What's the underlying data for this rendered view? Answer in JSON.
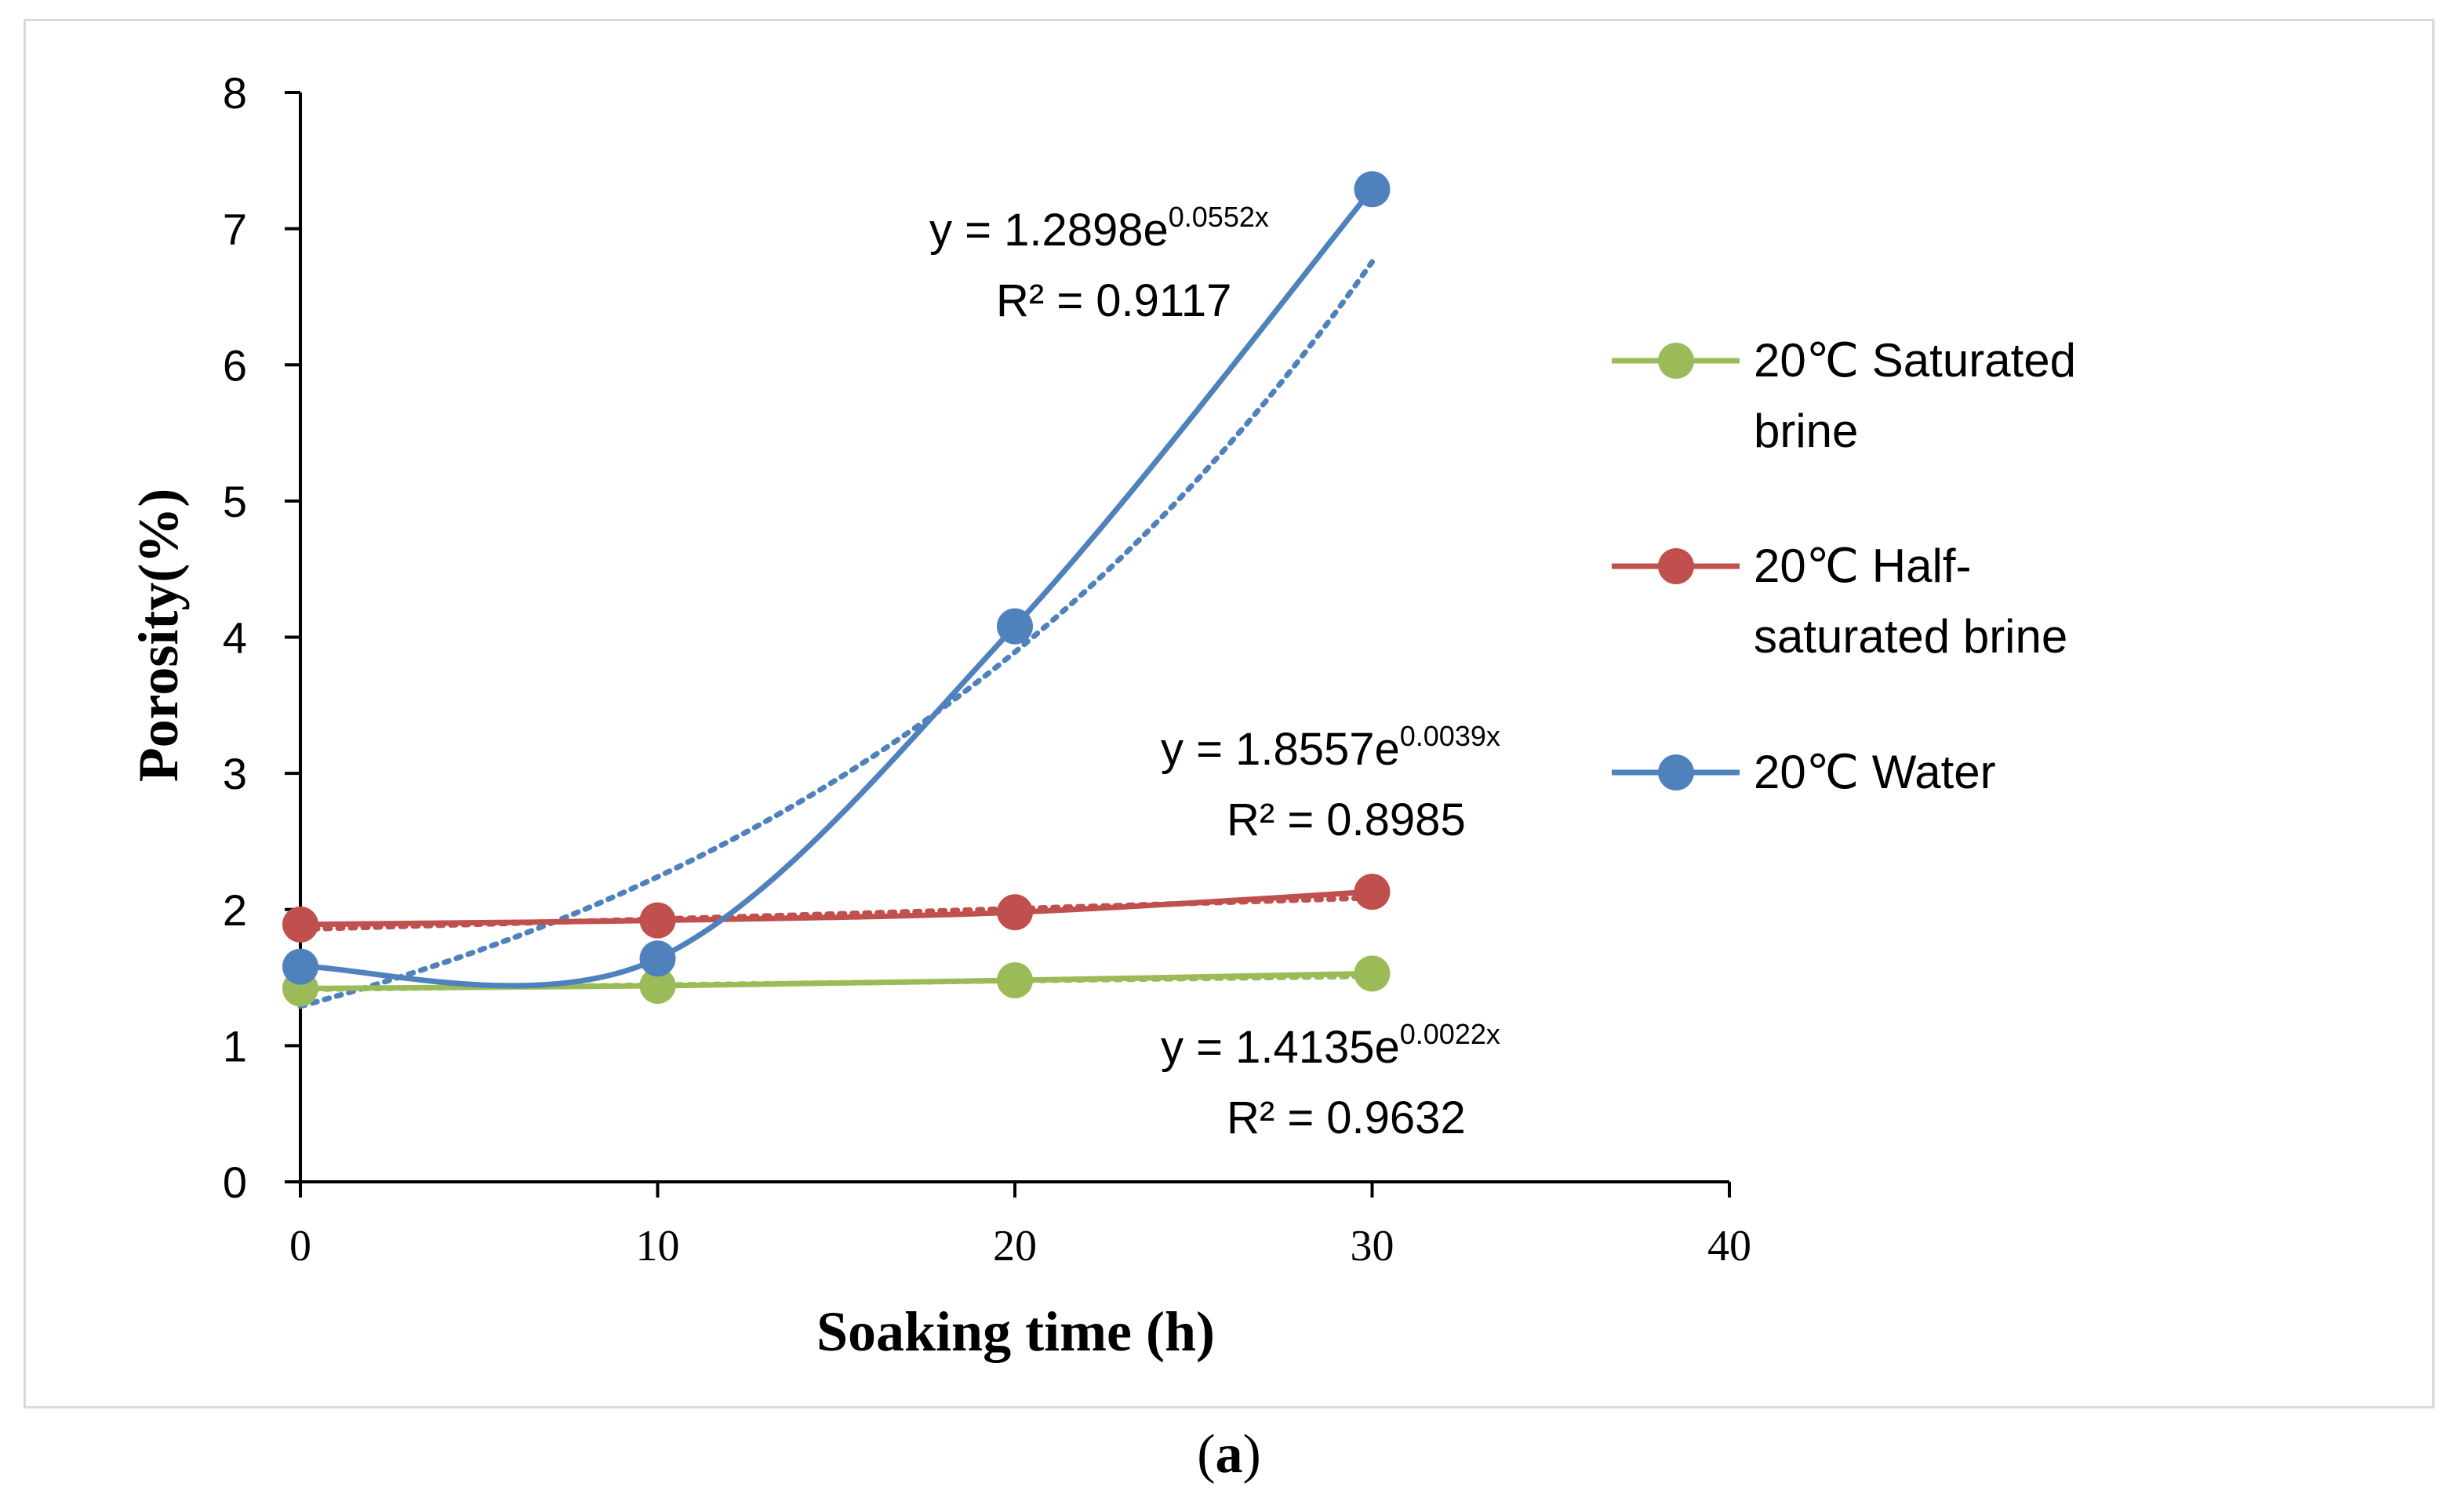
{
  "chart_data": {
    "type": "line",
    "xlabel": "Soaking time (h)",
    "ylabel": "Porosity(%)",
    "xlim": [
      0,
      40
    ],
    "ylim": [
      0,
      8
    ],
    "x_ticks": [
      0,
      10,
      20,
      30,
      40
    ],
    "y_ticks": [
      0,
      1,
      2,
      3,
      4,
      5,
      6,
      7,
      8
    ],
    "x": [
      0,
      10,
      20,
      30
    ],
    "series": [
      {
        "name_line1": "20℃ Saturated",
        "name_line2": "brine",
        "color": "#9bbb59",
        "values": [
          1.42,
          1.44,
          1.48,
          1.53
        ],
        "trendline": {
          "a": 1.4135,
          "b": 0.0022
        },
        "equation_prefix": "y = 1.4135e",
        "equation_exp": "0.0022x",
        "r2_text": "R² = 0.9632"
      },
      {
        "name_line1": "20℃ Half-",
        "name_line2": "saturated brine",
        "color": "#c0504d",
        "values": [
          1.89,
          1.92,
          1.98,
          2.13
        ],
        "trendline": {
          "a": 1.8557,
          "b": 0.0039
        },
        "equation_prefix": "y = 1.8557e",
        "equation_exp": "0.0039x",
        "r2_text": "R² = 0.8985"
      },
      {
        "name_line1": "20℃ Water",
        "name_line2": "",
        "color": "#4f81bd",
        "values": [
          1.58,
          1.64,
          4.08,
          7.29
        ],
        "trendline": {
          "a": 1.2898,
          "b": 0.0552
        },
        "equation_prefix": "y = 1.2898e",
        "equation_exp": "0.0552x",
        "r2_text": "R² = 0.9117"
      }
    ]
  },
  "caption": {
    "open": "(",
    "letter": "a",
    "close": ")"
  }
}
